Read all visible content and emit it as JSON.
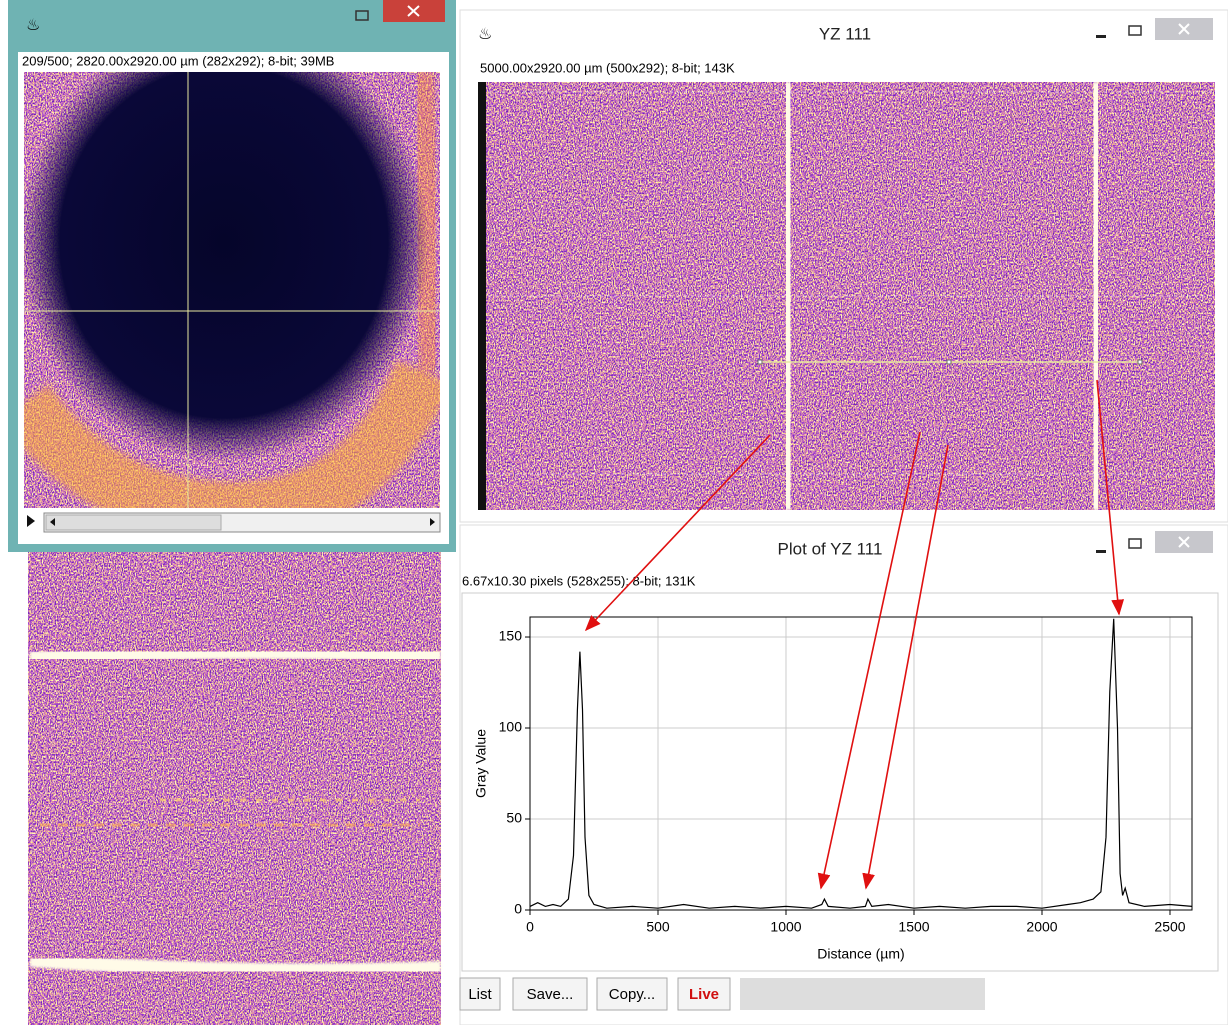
{
  "windows": {
    "stack": {
      "info": "209/500; 2820.00x2920.00 µm (282x292); 8-bit; 39MB"
    },
    "yz": {
      "title": "YZ 111",
      "info": "5000.00x2920.00 µm (500x292); 8-bit; 143K"
    },
    "plot": {
      "title": "Plot of YZ 111",
      "info": "6.67x10.30 pixels (528x255); 8-bit; 131K",
      "buttons": [
        "List",
        "Save...",
        "Copy...",
        "Live"
      ]
    }
  },
  "chart_data": {
    "type": "line",
    "x_label": "Distance (µm)",
    "y_label": "Gray Value",
    "xlim": [
      0,
      2586
    ],
    "ylim": [
      0,
      161
    ],
    "xticks": [
      0,
      500,
      1000,
      1500,
      2000,
      2500
    ],
    "yticks": [
      0,
      50,
      100,
      150
    ],
    "grid": true,
    "x": [
      0,
      30,
      60,
      90,
      120,
      150,
      170,
      185,
      195,
      205,
      215,
      230,
      250,
      300,
      400,
      500,
      600,
      700,
      800,
      900,
      1000,
      1100,
      1140,
      1150,
      1165,
      1250,
      1310,
      1320,
      1335,
      1400,
      1500,
      1600,
      1700,
      1800,
      1900,
      2000,
      2100,
      2150,
      2200,
      2230,
      2250,
      2265,
      2280,
      2295,
      2305,
      2315,
      2325,
      2340,
      2400,
      2500,
      2586
    ],
    "series": [
      {
        "color": "#000000",
        "values": [
          2,
          4,
          2,
          3,
          2,
          6,
          30,
          110,
          142,
          110,
          40,
          8,
          3,
          1,
          2,
          1,
          3,
          1,
          2,
          1,
          2,
          1,
          3,
          6,
          2,
          1,
          2,
          6,
          2,
          3,
          1,
          2,
          1,
          2,
          2,
          1,
          3,
          4,
          6,
          10,
          40,
          120,
          160,
          100,
          20,
          8,
          12,
          4,
          2,
          3,
          2
        ]
      }
    ]
  }
}
